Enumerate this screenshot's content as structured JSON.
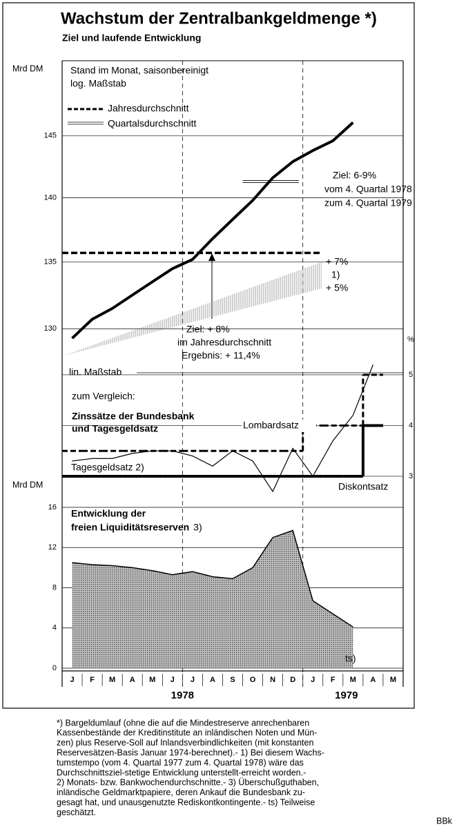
{
  "title": "Wachstum der Zentralbankgeldmenge *)",
  "subtitle": "Ziel und laufende Entwicklung",
  "source": "BBk",
  "footnote": [
    "*) Bargeldumlauf (ohne die auf die Mindestreserve anrechenbaren",
    "Kassenbestände der Kreditinstitute an inländischen Noten und Mün-",
    "zen) plus Reserve-Soll auf Inlandsverbindlichkeiten (mit konstanten",
    "Reservesätzen-Basis Januar 1974-berechnet).- 1) Bei diesem Wachs-",
    "tumstempo (vom 4. Quartal 1977 zum 4. Quartal 1978) wäre das",
    "Durchschnittsziel-stetige Entwicklung unterstellt-erreicht worden.-",
    "2) Monats- bzw. Bankwochendurchschnitte.- 3) Überschußguthaben,",
    "inländische Geldmarktpapiere, deren Ankauf die Bundesbank zu-",
    "gesagt hat, und unausgenutzte Rediskontkontingente.- ts) Teilweise",
    "geschätzt."
  ],
  "chart_data": [
    {
      "type": "line",
      "y_label": "Mrd DM",
      "log_scale": true,
      "grid": true,
      "notes": [
        "Stand im Monat, saisonbereinigt",
        "log. Maßstab"
      ],
      "ylim": [
        126.8,
        151.3
      ],
      "yticks": [
        130,
        135,
        140,
        145
      ],
      "values": [
        129.3,
        130.7,
        131.5,
        132.5,
        133.5,
        134.5,
        135.2,
        136.8,
        138.3,
        139.8,
        141.6,
        142.9,
        143.8,
        144.6,
        146.1,
        null,
        null
      ],
      "color": "#000000",
      "annual_average": {
        "name": "Jahresdurchschnitt",
        "value": 135.7
      },
      "quarterly_average": {
        "name": "Quartalsdurchschnitt",
        "value": 141.3
      },
      "target_1979": [
        "Ziel:  6-9%",
        "vom 4. Quartal 1978",
        "zum 4. Quartal 1979"
      ],
      "target_corridor": {
        "start": 128.0,
        "upper": 135.0,
        "lower": 133.0,
        "labels": [
          "+ 7%",
          "1)",
          "+ 5%"
        ]
      },
      "target_1978": [
        "Ziel: + 8%",
        "im Jahresdurchschnitt",
        "Ergebnis: + 11,4%"
      ]
    },
    {
      "type": "line",
      "y_label": "%",
      "scale_note": "lin. Maßstab",
      "grid": true,
      "notes": [
        "zum Vergleich:",
        "Zinssätze der Bundesbank",
        "und Tagesgeldsatz"
      ],
      "ylim": [
        2.7,
        5.04
      ],
      "yticks": [
        3,
        4,
        5
      ],
      "series": [
        {
          "name": "Lombardsatz",
          "style": "step-dashed",
          "color": "#000000",
          "values": [
            3.5,
            3.5,
            3.5,
            3.5,
            3.5,
            3.5,
            3.5,
            3.5,
            3.5,
            3.5,
            3.5,
            3.5,
            4,
            4,
            4,
            5,
            null
          ]
        },
        {
          "name": "Diskontsatz",
          "style": "step",
          "color": "#000000",
          "values": [
            3,
            3,
            3,
            3,
            3,
            3,
            3,
            3,
            3,
            3,
            3,
            3,
            3,
            3,
            3,
            4,
            null
          ]
        },
        {
          "name": "Tagesgeldsatz 2)",
          "style": "line",
          "color": "#000000",
          "values": [
            3.3,
            3.35,
            3.35,
            3.45,
            3.5,
            3.5,
            3.4,
            3.2,
            3.5,
            3.3,
            2.7,
            3.55,
            3.0,
            3.7,
            4.2,
            5.2,
            null
          ]
        }
      ]
    },
    {
      "type": "area",
      "y_label": "Mrd DM",
      "grid": true,
      "notes": [
        "Entwicklung der",
        "freien Liquiditätsreserven",
        "3)"
      ],
      "annotation": "ts)",
      "categories": [
        "J",
        "F",
        "M",
        "A",
        "M",
        "J",
        "J",
        "A",
        "S",
        "O",
        "N",
        "D",
        "J",
        "F",
        "M",
        "A",
        "M"
      ],
      "year_labels": [
        "1978",
        "1979"
      ],
      "ylim": [
        0,
        16
      ],
      "yticks": [
        0,
        4,
        8,
        12,
        16
      ],
      "values": [
        10.5,
        10.3,
        10.2,
        10.0,
        9.7,
        9.3,
        9.6,
        9.1,
        8.9,
        10.0,
        13.0,
        13.7,
        6.7,
        5.4,
        4.1,
        null,
        null
      ],
      "color": "#b0b0b0"
    }
  ]
}
